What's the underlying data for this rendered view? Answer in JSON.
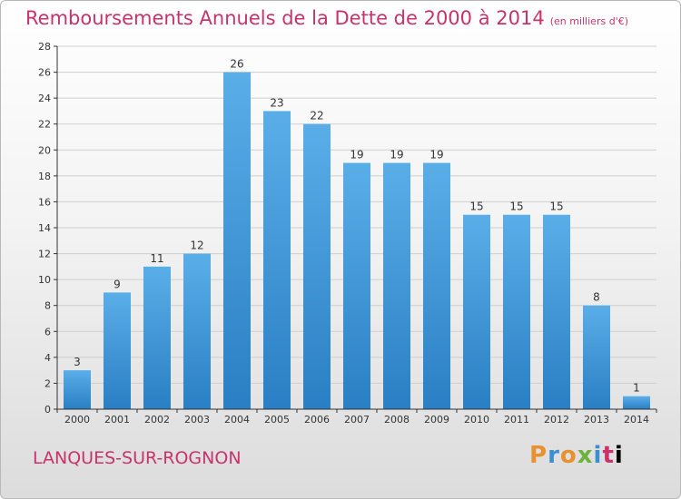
{
  "title": "Remboursements Annuels de la Dette de 2000 à 2014",
  "unit_note": "(en milliers d'€)",
  "commune": "LANQUES-SUR-ROGNON",
  "brand_letters": [
    "P",
    "r",
    "o",
    "x",
    "i",
    "t",
    "i"
  ],
  "colors": {
    "title": "#c8336b",
    "bar_light": "#5aaee8",
    "bar_dark": "#2a7fc4",
    "grid": "#cfcfcf",
    "axis": "#333333"
  },
  "chart_data": {
    "type": "bar",
    "title": "Remboursements Annuels de la Dette de 2000 à 2014",
    "categories": [
      "2000",
      "2001",
      "2002",
      "2003",
      "2004",
      "2005",
      "2006",
      "2007",
      "2008",
      "2009",
      "2010",
      "2011",
      "2012",
      "2013",
      "2014"
    ],
    "values": [
      3,
      9,
      11,
      12,
      26,
      23,
      22,
      19,
      19,
      19,
      15,
      15,
      15,
      8,
      1
    ],
    "ylim": [
      0,
      28
    ],
    "yticks": [
      0,
      2,
      4,
      6,
      8,
      10,
      12,
      14,
      16,
      18,
      20,
      22,
      24,
      26,
      28
    ],
    "grid": true,
    "xlabel": "",
    "ylabel": ""
  }
}
